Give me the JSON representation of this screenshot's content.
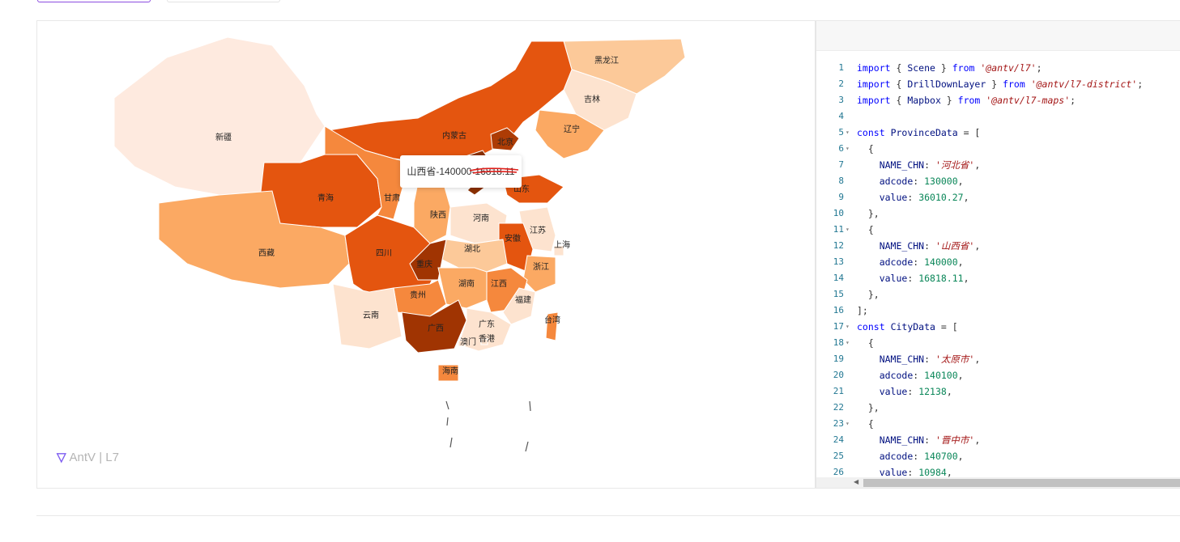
{
  "map": {
    "tooltip": "山西省-140000-16818.11",
    "logo": "AntV | L7",
    "regions": [
      {
        "name": "黑龙江",
        "color": "#fcc999"
      },
      {
        "name": "吉林",
        "color": "#fde3cf"
      },
      {
        "name": "辽宁",
        "color": "#fba963"
      },
      {
        "name": "内蒙古",
        "color": "#e4550f"
      },
      {
        "name": "北京",
        "color": "#ad3c05"
      },
      {
        "name": "新疆",
        "color": "#feeadf"
      },
      {
        "name": "青海",
        "color": "#e4550f"
      },
      {
        "name": "甘肃",
        "color": "#f5883d"
      },
      {
        "name": "西藏",
        "color": "#fba963"
      },
      {
        "name": "陕西",
        "color": "#fba963"
      },
      {
        "name": "河南",
        "color": "#fde3cf"
      },
      {
        "name": "山东",
        "color": "#e4550f"
      },
      {
        "name": "江苏",
        "color": "#fde3cf"
      },
      {
        "name": "上海",
        "color": "#fde3cf"
      },
      {
        "name": "安徽",
        "color": "#e4550f"
      },
      {
        "name": "湖北",
        "color": "#fcc999"
      },
      {
        "name": "四川",
        "color": "#e4550f"
      },
      {
        "name": "重庆",
        "color": "#a03402"
      },
      {
        "name": "浙江",
        "color": "#fba963"
      },
      {
        "name": "湖南",
        "color": "#fba963"
      },
      {
        "name": "江西",
        "color": "#f5883d"
      },
      {
        "name": "贵州",
        "color": "#f5883d"
      },
      {
        "name": "福建",
        "color": "#fde3cf"
      },
      {
        "name": "云南",
        "color": "#fde3cf"
      },
      {
        "name": "广西",
        "color": "#a03402"
      },
      {
        "name": "广东",
        "color": "#fde3cf"
      },
      {
        "name": "台湾",
        "color": "#f5883d"
      },
      {
        "name": "澳门",
        "color": "#fde3cf"
      },
      {
        "name": "香港",
        "color": "#fde3cf"
      },
      {
        "name": "海南",
        "color": "#f5883d"
      },
      {
        "name": "山西",
        "color": "#8b3002"
      }
    ]
  },
  "code": {
    "lines": [
      {
        "n": "1",
        "fold": "",
        "tokens": [
          [
            "kw",
            "import"
          ],
          [
            "pun",
            " { "
          ],
          [
            "prop",
            "Scene"
          ],
          [
            "pun",
            " } "
          ],
          [
            "kw",
            "from"
          ],
          [
            "pun",
            " "
          ],
          [
            "str",
            "'@antv/l7'"
          ],
          [
            "pun",
            ";"
          ]
        ]
      },
      {
        "n": "2",
        "fold": "",
        "tokens": [
          [
            "kw",
            "import"
          ],
          [
            "pun",
            " { "
          ],
          [
            "prop",
            "DrillDownLayer"
          ],
          [
            "pun",
            " } "
          ],
          [
            "kw",
            "from"
          ],
          [
            "pun",
            " "
          ],
          [
            "str",
            "'@antv/l7-district'"
          ],
          [
            "pun",
            ";"
          ]
        ]
      },
      {
        "n": "3",
        "fold": "",
        "tokens": [
          [
            "kw",
            "import"
          ],
          [
            "pun",
            " { "
          ],
          [
            "prop",
            "Mapbox"
          ],
          [
            "pun",
            " } "
          ],
          [
            "kw",
            "from"
          ],
          [
            "pun",
            " "
          ],
          [
            "str",
            "'@antv/l7-maps'"
          ],
          [
            "pun",
            ";"
          ]
        ]
      },
      {
        "n": "4",
        "fold": "",
        "tokens": []
      },
      {
        "n": "5",
        "fold": "▾",
        "tokens": [
          [
            "kw",
            "const"
          ],
          [
            "pun",
            " "
          ],
          [
            "prop",
            "ProvinceData"
          ],
          [
            "pun",
            " = ["
          ]
        ]
      },
      {
        "n": "6",
        "fold": "▾",
        "tokens": [
          [
            "pun",
            "  {"
          ]
        ]
      },
      {
        "n": "7",
        "fold": "",
        "tokens": [
          [
            "pun",
            "    "
          ],
          [
            "prop",
            "NAME_CHN"
          ],
          [
            "pun",
            ": "
          ],
          [
            "str",
            "'河北省'"
          ],
          [
            "pun",
            ","
          ]
        ]
      },
      {
        "n": "8",
        "fold": "",
        "tokens": [
          [
            "pun",
            "    "
          ],
          [
            "prop",
            "adcode"
          ],
          [
            "pun",
            ": "
          ],
          [
            "num",
            "130000"
          ],
          [
            "pun",
            ","
          ]
        ]
      },
      {
        "n": "9",
        "fold": "",
        "tokens": [
          [
            "pun",
            "    "
          ],
          [
            "prop",
            "value"
          ],
          [
            "pun",
            ": "
          ],
          [
            "num",
            "36010.27"
          ],
          [
            "pun",
            ","
          ]
        ]
      },
      {
        "n": "10",
        "fold": "",
        "tokens": [
          [
            "pun",
            "  },"
          ]
        ]
      },
      {
        "n": "11",
        "fold": "▾",
        "tokens": [
          [
            "pun",
            "  {"
          ]
        ]
      },
      {
        "n": "12",
        "fold": "",
        "tokens": [
          [
            "pun",
            "    "
          ],
          [
            "prop",
            "NAME_CHN"
          ],
          [
            "pun",
            ": "
          ],
          [
            "str",
            "'山西省'"
          ],
          [
            "pun",
            ","
          ]
        ]
      },
      {
        "n": "13",
        "fold": "",
        "tokens": [
          [
            "pun",
            "    "
          ],
          [
            "prop",
            "adcode"
          ],
          [
            "pun",
            ": "
          ],
          [
            "num",
            "140000"
          ],
          [
            "pun",
            ","
          ]
        ]
      },
      {
        "n": "14",
        "fold": "",
        "tokens": [
          [
            "pun",
            "    "
          ],
          [
            "prop",
            "value"
          ],
          [
            "pun",
            ": "
          ],
          [
            "num",
            "16818.11"
          ],
          [
            "pun",
            ","
          ]
        ]
      },
      {
        "n": "15",
        "fold": "",
        "tokens": [
          [
            "pun",
            "  },"
          ]
        ]
      },
      {
        "n": "16",
        "fold": "",
        "tokens": [
          [
            "pun",
            "];"
          ]
        ]
      },
      {
        "n": "17",
        "fold": "▾",
        "tokens": [
          [
            "kw",
            "const"
          ],
          [
            "pun",
            " "
          ],
          [
            "prop",
            "CityData"
          ],
          [
            "pun",
            " = ["
          ]
        ]
      },
      {
        "n": "18",
        "fold": "▾",
        "tokens": [
          [
            "pun",
            "  {"
          ]
        ]
      },
      {
        "n": "19",
        "fold": "",
        "tokens": [
          [
            "pun",
            "    "
          ],
          [
            "prop",
            "NAME_CHN"
          ],
          [
            "pun",
            ": "
          ],
          [
            "str",
            "'太原市'"
          ],
          [
            "pun",
            ","
          ]
        ]
      },
      {
        "n": "20",
        "fold": "",
        "tokens": [
          [
            "pun",
            "    "
          ],
          [
            "prop",
            "adcode"
          ],
          [
            "pun",
            ": "
          ],
          [
            "num",
            "140100"
          ],
          [
            "pun",
            ","
          ]
        ]
      },
      {
        "n": "21",
        "fold": "",
        "tokens": [
          [
            "pun",
            "    "
          ],
          [
            "prop",
            "value"
          ],
          [
            "pun",
            ": "
          ],
          [
            "num",
            "12138"
          ],
          [
            "pun",
            ","
          ]
        ]
      },
      {
        "n": "22",
        "fold": "",
        "tokens": [
          [
            "pun",
            "  },"
          ]
        ]
      },
      {
        "n": "23",
        "fold": "▾",
        "tokens": [
          [
            "pun",
            "  {"
          ]
        ]
      },
      {
        "n": "24",
        "fold": "",
        "tokens": [
          [
            "pun",
            "    "
          ],
          [
            "prop",
            "NAME_CHN"
          ],
          [
            "pun",
            ": "
          ],
          [
            "str",
            "'晋中市'"
          ],
          [
            "pun",
            ","
          ]
        ]
      },
      {
        "n": "25",
        "fold": "",
        "tokens": [
          [
            "pun",
            "    "
          ],
          [
            "prop",
            "adcode"
          ],
          [
            "pun",
            ": "
          ],
          [
            "num",
            "140700"
          ],
          [
            "pun",
            ","
          ]
        ]
      },
      {
        "n": "26",
        "fold": "",
        "tokens": [
          [
            "pun",
            "    "
          ],
          [
            "prop",
            "value"
          ],
          [
            "pun",
            ": "
          ],
          [
            "num",
            "10984"
          ],
          [
            "pun",
            ","
          ]
        ]
      }
    ]
  }
}
